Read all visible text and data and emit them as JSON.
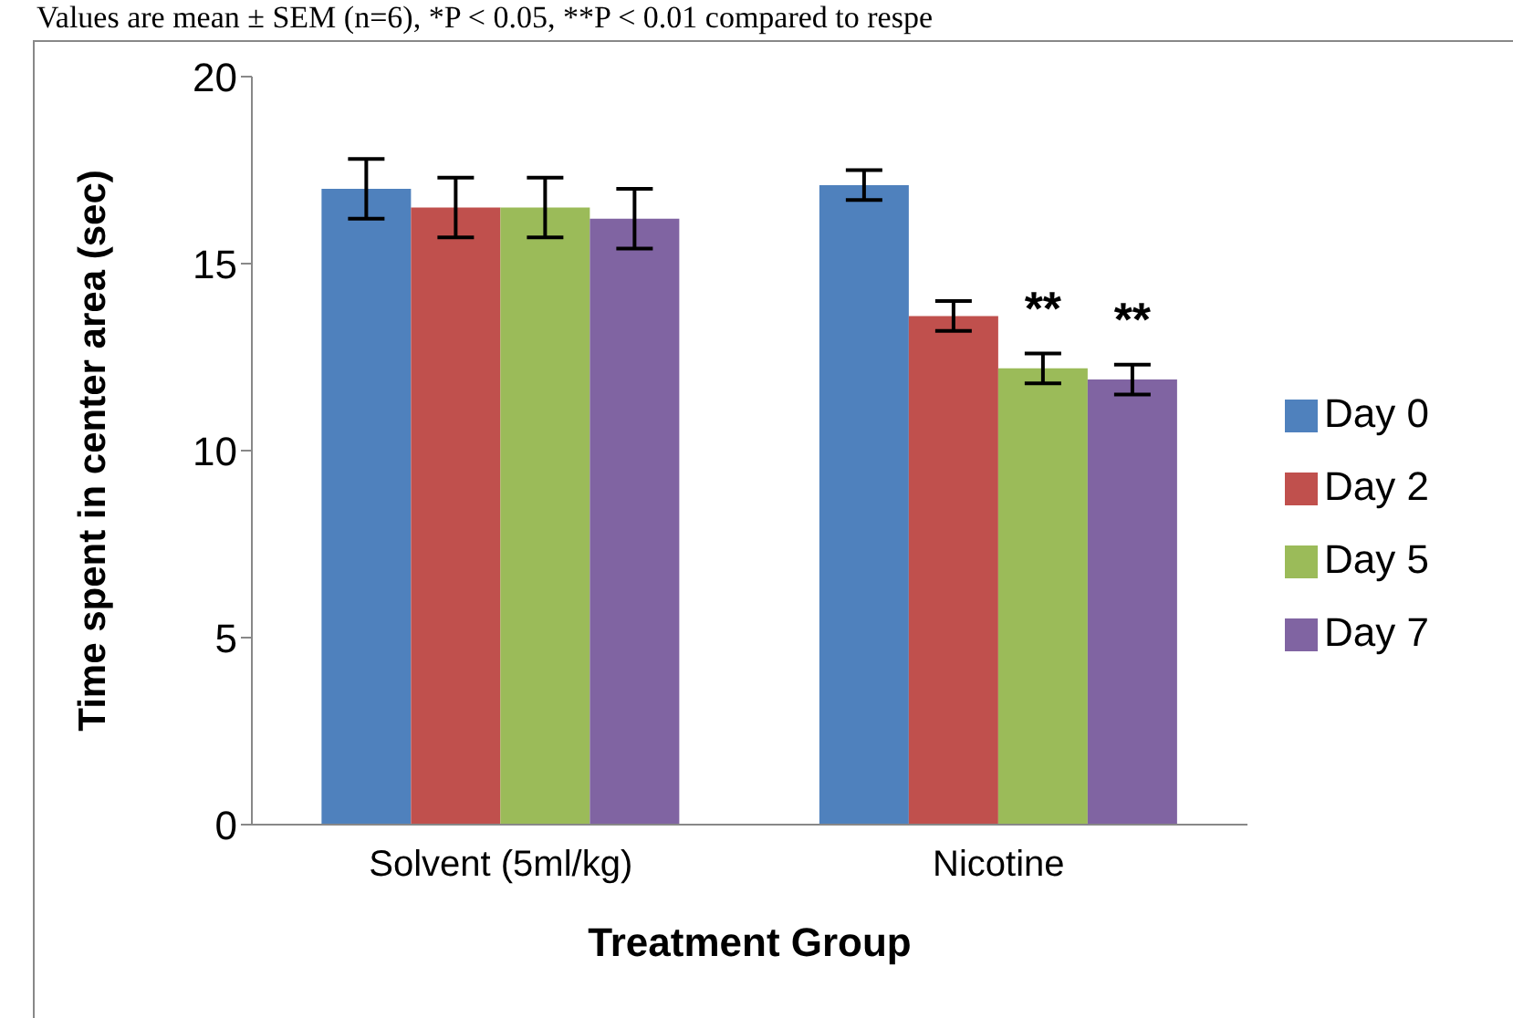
{
  "chart_data": {
    "type": "bar",
    "annotations": [
      "Values are mean ± SEM (n=6), *P < 0.05, **P < 0.01 compared to respe"
    ],
    "xlabel": "Treatment Group",
    "ylabel": "Time spent in center area (sec)",
    "categories": [
      "Solvent (5ml/kg)",
      "Nicotine"
    ],
    "series": [
      {
        "name": "Day 0",
        "color": "#4f81bd",
        "values": [
          17.0,
          17.1
        ],
        "errors": [
          0.8,
          0.4
        ]
      },
      {
        "name": "Day 2",
        "color": "#c0504d",
        "values": [
          16.5,
          13.6
        ],
        "errors": [
          0.8,
          0.4
        ]
      },
      {
        "name": "Day 5",
        "color": "#9bbb59",
        "values": [
          16.5,
          12.2
        ],
        "errors": [
          0.8,
          0.4
        ],
        "value_labels": [
          null,
          "**"
        ]
      },
      {
        "name": "Day 7",
        "color": "#8064a2",
        "values": [
          16.2,
          11.9
        ],
        "errors": [
          0.8,
          0.4
        ],
        "value_labels": [
          null,
          "**"
        ]
      }
    ],
    "ylim": [
      0,
      20
    ],
    "yticks": [
      0,
      5,
      10,
      15,
      20
    ],
    "grid": false,
    "legend": "right"
  }
}
